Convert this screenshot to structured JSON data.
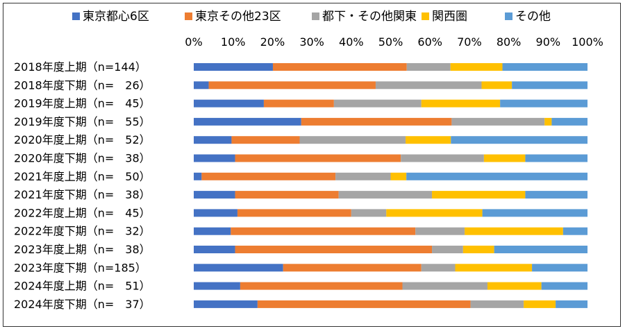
{
  "chart_data": {
    "type": "bar",
    "orientation": "horizontal",
    "stacked": "percent",
    "title": "",
    "xlabel": "",
    "ylabel": "",
    "xlim": [
      0,
      100
    ],
    "x_ticks": [
      "0%",
      "10%",
      "20%",
      "30%",
      "40%",
      "50%",
      "60%",
      "70%",
      "80%",
      "90%",
      "100%"
    ],
    "grid": false,
    "legend_position": "top",
    "categories": [
      "2018年度上期（n=144）",
      "2018年度下期（n=　26）",
      "2019年度上期（n=　45）",
      "2019年度下期（n=　55）",
      "2020年度上期（n=　52）",
      "2020年度下期（n=　38）",
      "2021年度上期（n=　50）",
      "2021年度下期（n=　38）",
      "2022年度上期（n=　45）",
      "2022年度下期（n=　32）",
      "2023年度上期（n=　38）",
      "2023年度下期（n=185）",
      "2024年度上期（n=　51）",
      "2024年度下期（n=　37）"
    ],
    "series": [
      {
        "name": "東京都心6区",
        "color": "#4472C4",
        "values": [
          20.1,
          3.8,
          17.8,
          27.3,
          9.6,
          10.5,
          2.0,
          10.5,
          11.1,
          9.4,
          10.5,
          22.7,
          11.8,
          16.2
        ]
      },
      {
        "name": "東京その他23区",
        "color": "#ED7D31",
        "values": [
          34.0,
          42.4,
          17.8,
          38.2,
          17.3,
          42.1,
          34.0,
          26.3,
          28.9,
          46.9,
          50.0,
          35.1,
          41.2,
          54.1
        ]
      },
      {
        "name": "都下・その他関東",
        "color": "#A5A5A5",
        "values": [
          11.1,
          26.9,
          22.2,
          23.6,
          26.9,
          21.1,
          14.0,
          23.7,
          8.9,
          12.5,
          7.9,
          8.6,
          21.6,
          13.5
        ]
      },
      {
        "name": "関西圏",
        "color": "#FFC000",
        "values": [
          13.2,
          7.7,
          20.0,
          1.8,
          11.5,
          10.5,
          4.0,
          23.7,
          24.4,
          25.0,
          7.9,
          19.5,
          13.7,
          8.1
        ]
      },
      {
        "name": "その他",
        "color": "#5B9BD5",
        "values": [
          21.6,
          19.2,
          22.2,
          9.1,
          34.7,
          15.8,
          46.0,
          15.8,
          26.7,
          6.2,
          23.7,
          14.1,
          11.7,
          8.1
        ]
      }
    ]
  }
}
